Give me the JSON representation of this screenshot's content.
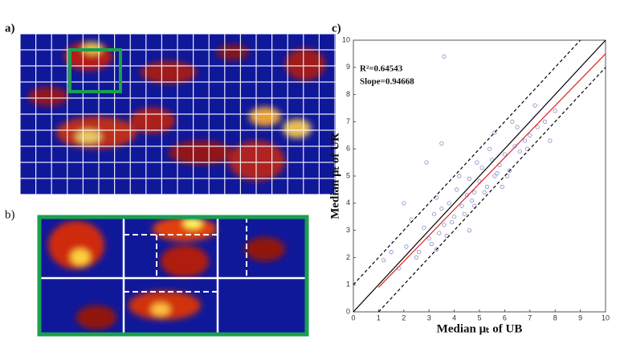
{
  "panel_a_label": "a)",
  "panel_b_label": "b)",
  "chart_data": {
    "type": "scatter",
    "panel_label": "c)",
    "x_label": "Median μₜ of UB",
    "y_label": "Median μₜ of UR",
    "annotations": [
      "R²=0.64543",
      "Slope=0.94668"
    ],
    "xlim": [
      0,
      10
    ],
    "ylim": [
      0,
      10
    ],
    "xticks": [
      0,
      1,
      2,
      3,
      4,
      5,
      6,
      7,
      8,
      9,
      10
    ],
    "yticks": [
      0,
      1,
      2,
      3,
      4,
      5,
      6,
      7,
      8,
      9,
      10
    ],
    "marker_color": "#8a8ac8",
    "x": [
      2.1,
      2.5,
      2.8,
      3.0,
      3.2,
      3.4,
      3.5,
      3.6,
      3.8,
      4.0,
      4.1,
      4.3,
      4.5,
      4.6,
      4.8,
      5.0,
      5.1,
      5.3,
      5.5,
      5.6,
      5.8,
      6.0,
      6.2,
      6.4,
      6.6,
      6.8,
      7.0,
      7.3,
      7.6,
      8.0,
      1.5,
      1.8,
      2.3,
      2.6,
      3.1,
      3.3,
      3.9,
      4.2,
      4.4,
      4.7,
      4.9,
      5.2,
      5.4,
      5.7,
      6.1,
      6.5,
      6.9,
      7.2,
      2.9,
      3.7,
      1.2,
      3.5,
      4.6,
      6.3,
      5.9,
      2.0,
      3.3,
      4.8,
      5.6,
      7.8,
      3.6
    ],
    "values": [
      2.4,
      2.0,
      3.1,
      2.7,
      3.6,
      2.9,
      3.8,
      3.2,
      4.0,
      3.5,
      4.5,
      3.9,
      4.3,
      4.9,
      4.4,
      4.8,
      5.3,
      4.6,
      5.6,
      5.0,
      5.4,
      5.8,
      5.2,
      6.1,
      5.9,
      6.3,
      6.5,
      6.8,
      7.0,
      7.4,
      2.2,
      1.6,
      3.4,
      2.2,
      2.5,
      4.2,
      3.3,
      5.0,
      3.6,
      4.1,
      5.5,
      4.4,
      6.0,
      5.1,
      5.0,
      6.8,
      6.0,
      7.6,
      5.5,
      2.8,
      1.9,
      6.2,
      3.0,
      7.0,
      4.6,
      4.0,
      2.3,
      3.9,
      6.6,
      6.3,
      9.4
    ],
    "lines": [
      {
        "color": "#000000",
        "dash": false,
        "x": [
          0,
          10
        ],
        "values": [
          0,
          10
        ]
      },
      {
        "color": "#e02020",
        "dash": false,
        "x": [
          1,
          10
        ],
        "values": [
          0.9,
          9.5
        ]
      },
      {
        "color": "#000000",
        "dash": true,
        "x": [
          0,
          9
        ],
        "values": [
          1,
          10
        ]
      },
      {
        "color": "#000000",
        "dash": true,
        "x": [
          1,
          10
        ],
        "values": [
          0,
          9
        ]
      }
    ]
  }
}
